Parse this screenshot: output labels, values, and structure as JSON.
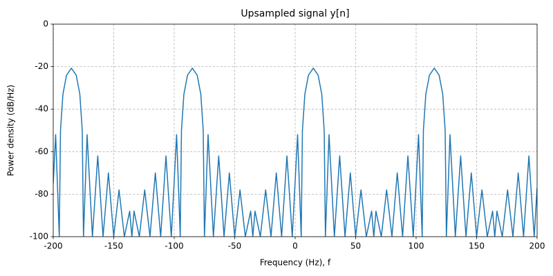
{
  "chart_data": {
    "type": "line",
    "title": "Upsampled signal y[n]",
    "xlabel": "Frequency (Hz), f",
    "ylabel": "Power density (dB/Hz)",
    "x": [
      -200,
      -198,
      -195,
      -194,
      -192,
      -189,
      -185,
      -181,
      -178,
      -176,
      -175,
      -172,
      -167.6,
      -163.2,
      -158.8,
      -154.4,
      -150,
      -145.6,
      -141.2,
      -136.8,
      -135,
      -133.2,
      -128.8,
      -124.4,
      -120,
      -115.6,
      -111.2,
      -106.8,
      -102.4,
      -98,
      -95,
      -94,
      -92,
      -89,
      -85,
      -81,
      -78,
      -76,
      -75,
      -72,
      -67.6,
      -63.2,
      -58.8,
      -54.4,
      -50,
      -45.6,
      -41.2,
      -36.8,
      -35,
      -33.2,
      -28.8,
      -24.4,
      -20,
      -15.6,
      -11.2,
      -6.8,
      -2.4,
      2,
      5,
      6,
      8,
      11,
      15,
      19,
      22,
      24,
      25,
      28,
      32.4,
      36.8,
      41.2,
      45.6,
      50,
      54.4,
      58.8,
      63.2,
      65,
      66.8,
      71.2,
      75.6,
      80,
      84.4,
      88.8,
      93.2,
      97.6,
      102,
      105,
      106,
      108,
      111,
      115,
      119,
      122,
      124,
      125,
      128,
      132.4,
      136.8,
      141.2,
      145.6,
      150,
      154.4,
      158.8,
      163.2,
      165,
      166.8,
      171.2,
      175.6,
      180,
      184.4,
      188.8,
      193.2,
      197.6,
      200
    ],
    "values": [
      -75,
      -52,
      -100,
      -50,
      -33,
      -24,
      -20.7,
      -24,
      -33,
      -50,
      -100,
      -52,
      -100,
      -62,
      -100,
      -70,
      -100,
      -78,
      -100,
      -88,
      -100,
      -88,
      -100,
      -78,
      -100,
      -70,
      -100,
      -62,
      -100,
      -52,
      -100,
      -50,
      -33,
      -24,
      -20.7,
      -24,
      -33,
      -50,
      -100,
      -52,
      -100,
      -62,
      -100,
      -70,
      -100,
      -78,
      -100,
      -88,
      -100,
      -88,
      -100,
      -78,
      -100,
      -70,
      -100,
      -62,
      -100,
      -52,
      -100,
      -50,
      -33,
      -24,
      -20.7,
      -24,
      -33,
      -50,
      -100,
      -52,
      -100,
      -62,
      -100,
      -70,
      -100,
      -78,
      -100,
      -88,
      -100,
      -88,
      -100,
      -78,
      -100,
      -70,
      -100,
      -62,
      -100,
      -52,
      -100,
      -50,
      -33,
      -24,
      -20.7,
      -24,
      -33,
      -50,
      -100,
      -52,
      -100,
      -62,
      -100,
      -70,
      -100,
      -78,
      -100,
      -88,
      -100,
      -88,
      -100,
      -78,
      -100,
      -70,
      -100,
      -62,
      -100,
      -77
    ],
    "color": "#1f77b4",
    "xlim": [
      -200,
      200
    ],
    "ylim": [
      -100,
      0
    ],
    "xticks": [
      -200,
      -150,
      -100,
      -50,
      0,
      50,
      100,
      150,
      200
    ],
    "yticks": [
      0,
      -20,
      -40,
      -60,
      -80,
      -100
    ],
    "grid": true
  }
}
